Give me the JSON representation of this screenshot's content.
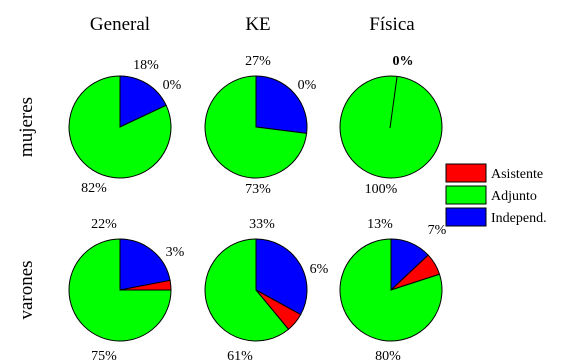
{
  "chart_data": {
    "type": "pie",
    "columns": [
      "General",
      "KE",
      "Física"
    ],
    "rows": [
      "mujeres",
      "varones"
    ],
    "legend": [
      {
        "name": "Asistente",
        "color": "#ff0000"
      },
      {
        "name": "Adjunto",
        "color": "#00ff00"
      },
      {
        "name": "Independ.",
        "color": "#0000ff"
      }
    ],
    "legend_position": "right",
    "pies": [
      {
        "row": "mujeres",
        "column": "General",
        "values": {
          "Asistente": 0,
          "Adjunto": 82,
          "Independ.": 18
        },
        "labels": {
          "Asistente": "0%",
          "Adjunto": "82%",
          "Independ.": "18%"
        }
      },
      {
        "row": "mujeres",
        "column": "KE",
        "values": {
          "Asistente": 0,
          "Adjunto": 73,
          "Independ.": 27
        },
        "labels": {
          "Asistente": "0%",
          "Adjunto": "73%",
          "Independ.": "27%"
        }
      },
      {
        "row": "mujeres",
        "column": "Física",
        "values": {
          "Asistente": 0,
          "Adjunto": 100,
          "Independ.": 0
        },
        "labels": {
          "Asistente": "",
          "Adjunto": "100%",
          "Independ.": "0%"
        }
      },
      {
        "row": "varones",
        "column": "General",
        "values": {
          "Asistente": 3,
          "Adjunto": 75,
          "Independ.": 22
        },
        "labels": {
          "Asistente": "3%",
          "Adjunto": "75%",
          "Independ.": "22%"
        }
      },
      {
        "row": "varones",
        "column": "KE",
        "values": {
          "Asistente": 6,
          "Adjunto": 61,
          "Independ.": 33
        },
        "labels": {
          "Asistente": "6%",
          "Adjunto": "61%",
          "Independ.": "33%"
        }
      },
      {
        "row": "varones",
        "column": "Física",
        "values": {
          "Asistente": 7,
          "Adjunto": 80,
          "Independ.": 13
        },
        "labels": {
          "Asistente": "7%",
          "Adjunto": "80%",
          "Independ.": "13%"
        }
      }
    ]
  }
}
